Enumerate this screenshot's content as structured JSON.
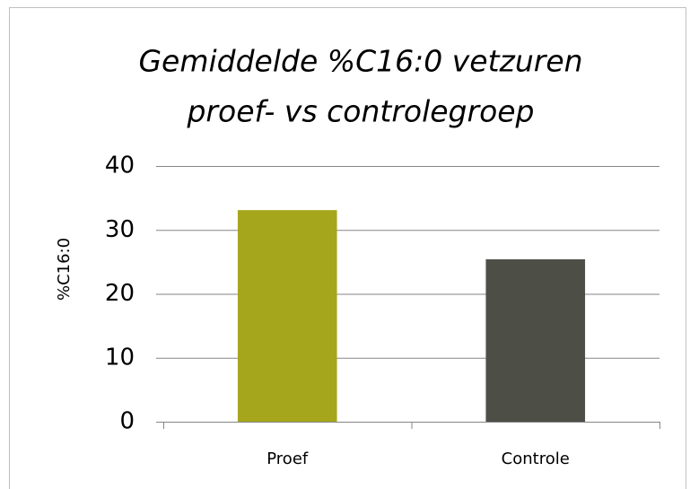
{
  "chart_data": {
    "type": "bar",
    "title": [
      "Gemiddelde %C16:0 vetzuren",
      "proef- vs controlegroep"
    ],
    "y_label": "%C16:0",
    "categories": [
      "Proef",
      "Controle"
    ],
    "values": [
      33.1,
      25.4
    ],
    "colors": [
      "#a6a61d",
      "#4d4f47"
    ],
    "ylim": [
      0,
      40
    ],
    "yticks": [
      0,
      10,
      20,
      30,
      40
    ],
    "grid": true
  }
}
